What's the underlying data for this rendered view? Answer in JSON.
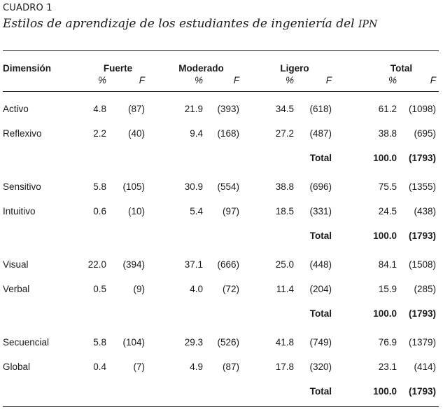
{
  "table_label": "CUADRO 1",
  "caption_main": "Estilos de aprendizaje de los estudiantes de ingeniería del ",
  "caption_abbr": "IPN",
  "headers": {
    "dimension": "Dimensión",
    "groups": [
      "Fuerte",
      "Moderado",
      "Ligero",
      "Total"
    ],
    "pct": "%",
    "freq": "F"
  },
  "total_label": "Total",
  "blocks": [
    {
      "rows": [
        {
          "name": "Activo",
          "vals": [
            "4.8",
            "(87)",
            "21.9",
            "(393)",
            "34.5",
            "(618)",
            "61.2",
            "(1098)"
          ]
        },
        {
          "name": "Reflexivo",
          "vals": [
            "2.2",
            "(40)",
            "9.4",
            "(168)",
            "27.2",
            "(487)",
            "38.8",
            "(695)"
          ]
        }
      ],
      "total_pct": "100.0",
      "total_f": "(1793)"
    },
    {
      "rows": [
        {
          "name": "Sensitivo",
          "vals": [
            "5.8",
            "(105)",
            "30.9",
            "(554)",
            "38.8",
            "(696)",
            "75.5",
            "(1355)"
          ]
        },
        {
          "name": "Intuitivo",
          "vals": [
            "0.6",
            "(10)",
            "5.4",
            "(97)",
            "18.5",
            "(331)",
            "24.5",
            "(438)"
          ]
        }
      ],
      "total_pct": "100.0",
      "total_f": "(1793)"
    },
    {
      "rows": [
        {
          "name": "Visual",
          "vals": [
            "22.0",
            "(394)",
            "37.1",
            "(666)",
            "25.0",
            "(448)",
            "84.1",
            "(1508)"
          ]
        },
        {
          "name": "Verbal",
          "vals": [
            "0.5",
            "(9)",
            "4.0",
            "(72)",
            "11.4",
            "(204)",
            "15.9",
            "(285)"
          ]
        }
      ],
      "total_pct": "100.0",
      "total_f": "(1793)"
    },
    {
      "rows": [
        {
          "name": "Secuencial",
          "vals": [
            "5.8",
            "(104)",
            "29.3",
            "(526)",
            "41.8",
            "(749)",
            "76.9",
            "(1379)"
          ]
        },
        {
          "name": "Global",
          "vals": [
            "0.4",
            "(7)",
            "4.9",
            "(87)",
            "17.8",
            "(320)",
            "23.1",
            "(414)"
          ]
        }
      ],
      "total_pct": "100.0",
      "total_f": "(1793)"
    }
  ]
}
